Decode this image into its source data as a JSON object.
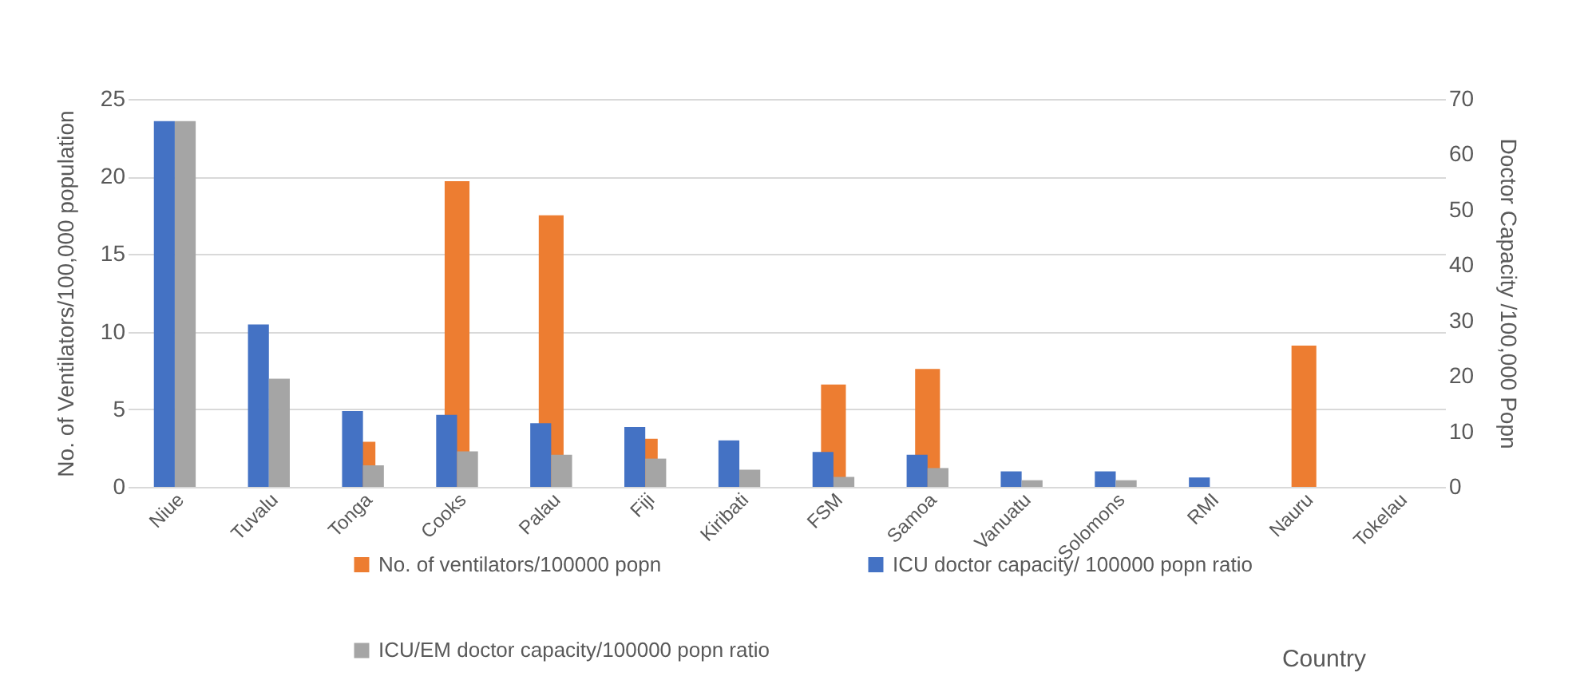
{
  "chart_data": {
    "type": "bar",
    "xlabel": "Country",
    "ylabel": "No. of Ventilators/100,000 population",
    "y2label": "Doctor Capacity /100,000 Popn",
    "categories": [
      "Niue",
      "Tuvalu",
      "Tonga",
      "Cooks",
      "Palau",
      "Fiji",
      "Kiribati",
      "FSM",
      "Samoa",
      "Vanuatu",
      "Solomons",
      "RMI",
      "Nauru",
      "Tokelau"
    ],
    "series": [
      {
        "name": "No. of ventilators/100000 popn",
        "color": "#ed7d31",
        "values": [
          null,
          null,
          2.9,
          19.7,
          17.5,
          3.1,
          null,
          6.6,
          7.6,
          null,
          null,
          null,
          9.1,
          null
        ]
      },
      {
        "name": "ICU doctor capacity/ 100000 popn ratio",
        "color": "#4472c4",
        "axis": "y2",
        "values": [
          66,
          29.3,
          13.7,
          13,
          11.5,
          10.8,
          8.4,
          6.3,
          5.8,
          2.8,
          2.8,
          1.7,
          null,
          null
        ]
      },
      {
        "name": "ICU/EM doctor capacity/100000 popn ratio",
        "color": "#a5a5a5",
        "axis": "y2",
        "values": [
          66,
          19.5,
          3.9,
          6.4,
          5.8,
          5.1,
          3.1,
          1.8,
          3.4,
          1.2,
          1.2,
          null,
          null,
          null
        ]
      }
    ],
    "ylim": [
      0,
      25
    ],
    "yticks": [
      0,
      5,
      10,
      15,
      20,
      25
    ],
    "y2lim": [
      0,
      70
    ],
    "y2ticks": [
      0,
      10,
      20,
      30,
      40,
      50,
      60,
      70
    ],
    "grid": "y",
    "legend": "bottom"
  }
}
